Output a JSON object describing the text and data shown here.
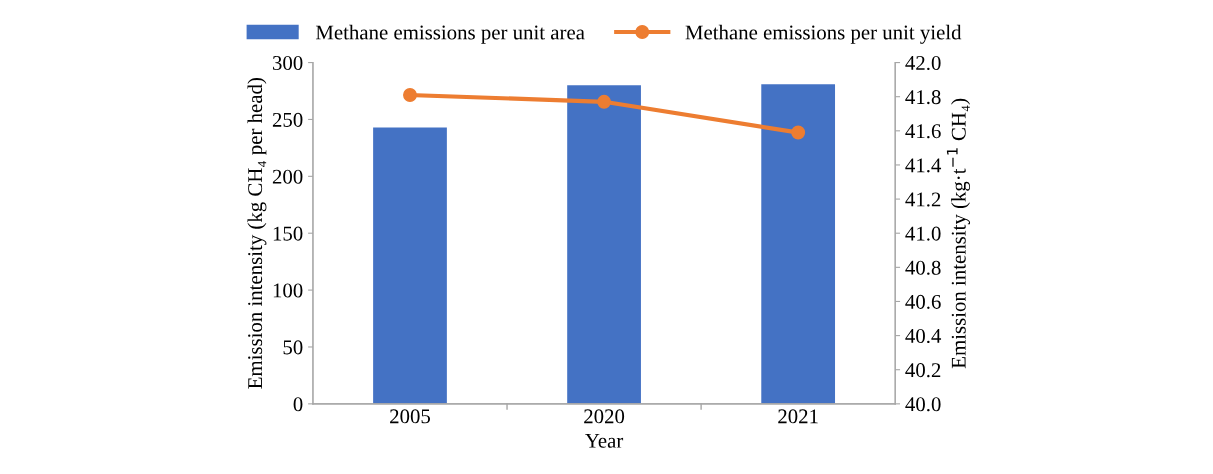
{
  "chart_data": {
    "type": "bar",
    "categories": [
      "2005",
      "2020",
      "2021"
    ],
    "xlabel": "Year",
    "ylabel": "Emission intensity (kg CH₄ per head)",
    "y2label": "Emission intensity (kg·t$^{−1}$ CH₄)",
    "series": [
      {
        "name": "Methane emissions per unit area",
        "color": "#4472c4",
        "values": [
          243,
          280,
          281
        ]
      },
      {
        "name": "Methane emissions per unit yield",
        "color": "#ed7d31",
        "type": "line",
        "axis": "y2",
        "marker": "circle",
        "values": [
          41.81,
          41.77,
          41.59
        ]
      }
    ],
    "ylim": [
      0,
      300
    ],
    "yticks": [
      0,
      50,
      100,
      150,
      200,
      250,
      300
    ],
    "y2lim": [
      40.0,
      42.0
    ],
    "y2ticks": [
      {
        "value": 40.0,
        "label": "40.0"
      },
      {
        "value": 40.2,
        "label": "40.2"
      },
      {
        "value": 40.4,
        "label": "40.4"
      },
      {
        "value": 40.6,
        "label": "40.6"
      },
      {
        "value": 40.8,
        "label": "40.8"
      },
      {
        "value": 41.0,
        "label": "41.0"
      },
      {
        "value": 41.2,
        "label": "41.2"
      },
      {
        "value": 41.4,
        "label": "41.4"
      },
      {
        "value": 41.6,
        "label": "41.6"
      },
      {
        "value": 41.8,
        "label": "41.8"
      },
      {
        "value": 42.0,
        "label": "42.0"
      }
    ],
    "legend": "top",
    "grid": false
  }
}
